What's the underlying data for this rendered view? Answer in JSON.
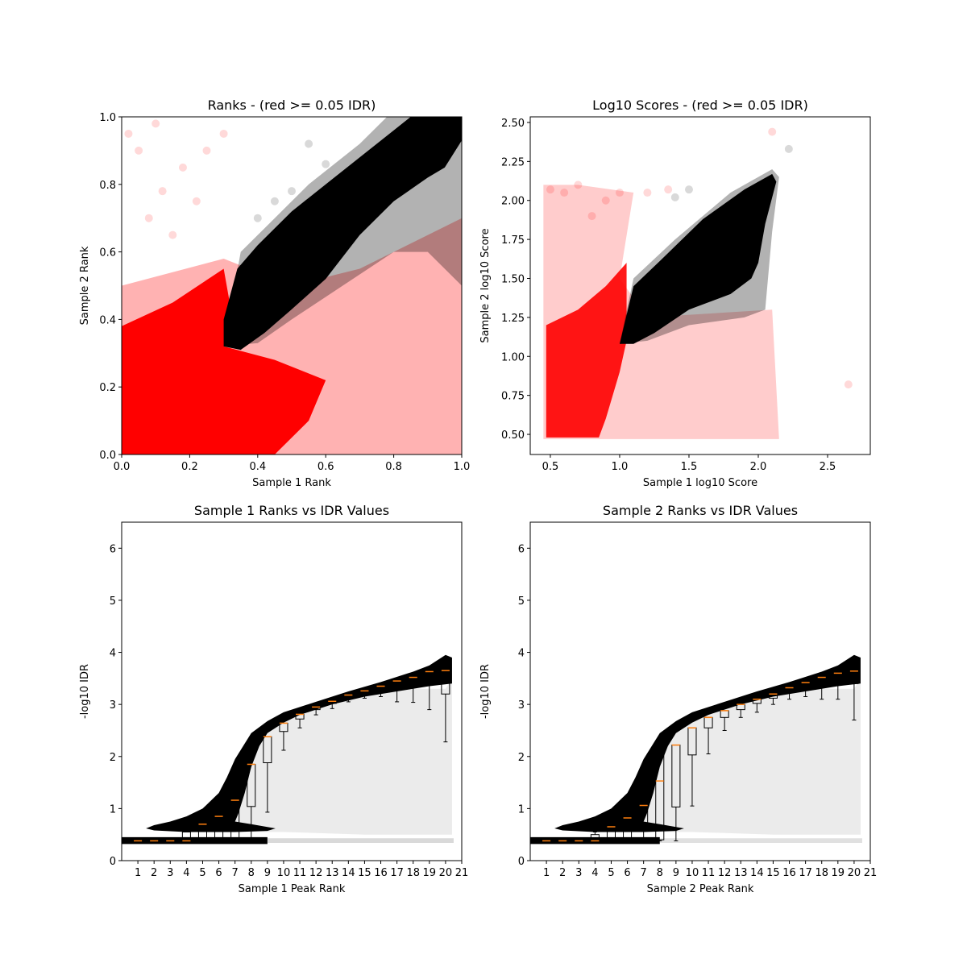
{
  "chart_data": [
    {
      "type": "scatter",
      "title": "Ranks - (red >= 0.05 IDR)",
      "xlabel": "Sample 1 Rank",
      "ylabel": "Sample 2 Rank",
      "xlim": [
        0,
        1
      ],
      "ylim": [
        0,
        1
      ],
      "xticks": [
        {
          "value": 0,
          "label": "0.0"
        },
        0.2,
        0.4,
        0.6,
        0.8,
        {
          "value": 1,
          "label": "1.0"
        }
      ],
      "yticks": [
        {
          "value": 0,
          "label": "0.0"
        },
        0.2,
        0.4,
        0.6,
        0.8,
        {
          "value": 1,
          "label": "1.0"
        }
      ],
      "regions": [
        {
          "color": "#ff0000",
          "opacity": 0.3,
          "x": [
            0,
            0,
            0.3,
            0.5,
            0.7,
            1,
            1
          ],
          "y": [
            0,
            0.5,
            0.58,
            0.5,
            0.55,
            0.7,
            0
          ]
        },
        {
          "color": "#ff0000",
          "opacity": 1,
          "x": [
            0,
            0,
            0.15,
            0.3,
            0.33,
            0.3,
            0.45,
            0.6,
            0.55,
            0.45
          ],
          "y": [
            0,
            0.38,
            0.45,
            0.55,
            0.38,
            0.32,
            0.28,
            0.22,
            0.1,
            0
          ]
        },
        {
          "color": "#000000",
          "opacity": 0.3,
          "x": [
            0.3,
            0.35,
            0.45,
            0.55,
            0.7,
            0.78,
            1,
            1,
            0.9,
            0.8,
            0.65,
            0.5,
            0.4
          ],
          "y": [
            0.32,
            0.6,
            0.7,
            0.8,
            0.92,
            1,
            1,
            0.5,
            0.6,
            0.6,
            0.5,
            0.4,
            0.33
          ]
        },
        {
          "color": "#000000",
          "opacity": 1,
          "x": [
            0.3,
            0.3,
            0.34,
            0.4,
            0.5,
            0.6,
            0.7,
            0.8,
            0.85,
            1,
            1,
            0.95,
            0.9,
            0.8,
            0.7,
            0.6,
            0.5,
            0.42,
            0.35
          ],
          "y": [
            0.32,
            0.4,
            0.55,
            0.62,
            0.72,
            0.8,
            0.88,
            0.96,
            1,
            1,
            0.93,
            0.85,
            0.82,
            0.75,
            0.65,
            0.52,
            0.43,
            0.36,
            0.31
          ]
        }
      ],
      "series": [
        {
          "color": "#ff0000",
          "opacity": 0.15,
          "x": [
            0.02,
            0.05,
            0.1,
            0.18,
            0.25,
            0.08,
            0.15,
            0.3,
            0.22,
            0.12
          ],
          "y": [
            0.95,
            0.9,
            0.98,
            0.85,
            0.9,
            0.7,
            0.65,
            0.95,
            0.75,
            0.78
          ]
        },
        {
          "color": "#000000",
          "opacity": 0.15,
          "x": [
            0.55,
            0.6,
            0.45,
            0.5,
            0.4
          ],
          "y": [
            0.92,
            0.86,
            0.75,
            0.78,
            0.7
          ]
        }
      ]
    },
    {
      "type": "scatter",
      "title": "Log10 Scores - (red >= 0.05 IDR)",
      "xlabel": "Sample 1 log10 Score",
      "ylabel": "Sample 2 log10 Score",
      "xlim": [
        0.355,
        2.808
      ],
      "ylim": [
        0.371,
        2.536
      ],
      "xticks": [
        0.5,
        {
          "value": 1,
          "label": "1.0"
        },
        1.5,
        {
          "value": 2,
          "label": "2.0"
        },
        2.5
      ],
      "yticks": [
        {
          "value": 0.5,
          "label": "0.50"
        },
        0.75,
        {
          "value": 1,
          "label": "1.00"
        },
        1.25,
        {
          "value": 1.5,
          "label": "1.50"
        },
        1.75,
        {
          "value": 2,
          "label": "2.00"
        },
        2.25,
        {
          "value": 2.5,
          "label": "2.50"
        }
      ],
      "regions": [
        {
          "color": "#ff0000",
          "opacity": 0.2,
          "x": [
            0.45,
            0.45,
            0.7,
            1.1,
            1.0,
            1.2,
            2.1,
            2.15
          ],
          "y": [
            0.47,
            2.1,
            2.1,
            2.05,
            1.5,
            1.25,
            1.3,
            0.47
          ]
        },
        {
          "color": "#ff0000",
          "opacity": 0.9,
          "x": [
            0.47,
            0.47,
            0.7,
            0.9,
            1.05,
            1.05,
            1.0,
            0.9,
            0.85
          ],
          "y": [
            0.48,
            1.2,
            1.3,
            1.45,
            1.6,
            1.1,
            0.9,
            0.6,
            0.48
          ]
        },
        {
          "color": "#000000",
          "opacity": 0.3,
          "x": [
            1.0,
            1.1,
            1.4,
            1.8,
            2.1,
            2.15,
            2.1,
            2.05,
            1.9,
            1.5,
            1.2
          ],
          "y": [
            1.08,
            1.5,
            1.75,
            2.05,
            2.2,
            2.15,
            1.8,
            1.3,
            1.25,
            1.2,
            1.1
          ]
        },
        {
          "color": "#000000",
          "opacity": 1,
          "x": [
            1.0,
            1.1,
            1.3,
            1.6,
            1.9,
            2.1,
            2.13,
            2.05,
            2.0,
            1.95,
            1.8,
            1.5,
            1.25,
            1.1
          ],
          "y": [
            1.08,
            1.45,
            1.62,
            1.88,
            2.07,
            2.17,
            2.12,
            1.85,
            1.6,
            1.5,
            1.4,
            1.3,
            1.15,
            1.08
          ]
        }
      ],
      "series": [
        {
          "color": "#ff0000",
          "opacity": 0.15,
          "x": [
            0.5,
            0.6,
            0.7,
            0.8,
            0.9,
            1.0,
            1.2,
            1.35,
            2.65,
            2.1
          ],
          "y": [
            2.07,
            2.05,
            2.1,
            1.9,
            2.0,
            2.05,
            2.05,
            2.07,
            0.82,
            2.44
          ]
        },
        {
          "color": "#000000",
          "opacity": 0.15,
          "x": [
            2.22,
            1.5,
            1.4
          ],
          "y": [
            2.33,
            2.07,
            2.02
          ]
        }
      ]
    },
    {
      "type": "box",
      "title": "Sample 1 Ranks vs IDR Values",
      "xlabel": "Sample 1 Peak Rank",
      "ylabel": "-log10 IDR",
      "xlim": [
        0,
        21
      ],
      "ylim": [
        0,
        6.5
      ],
      "xticks": [
        1,
        2,
        3,
        4,
        5,
        6,
        7,
        8,
        9,
        10,
        11,
        12,
        13,
        14,
        15,
        16,
        17,
        18,
        19,
        20,
        21
      ],
      "yticks": [
        0,
        1,
        2,
        3,
        4,
        5,
        6
      ],
      "box_color": "#000000",
      "median_color": "#ff7f0e",
      "regions": [
        {
          "color": "#000000",
          "opacity": 0.08,
          "x": [
            7,
            7,
            8,
            10,
            14,
            18,
            20,
            20.4,
            20.4,
            15,
            10
          ],
          "y": [
            0.55,
            1.5,
            2.3,
            2.7,
            3.1,
            3.3,
            3.3,
            3.5,
            0.5,
            0.5,
            0.55
          ]
        },
        {
          "color": "#000000",
          "opacity": 1,
          "x": [
            1.5,
            2,
            3,
            4,
            5,
            6,
            6.5,
            7,
            7.5,
            8,
            9,
            10,
            12,
            14,
            16,
            18,
            19,
            20,
            20.4,
            20.4,
            19,
            17,
            15,
            13,
            11,
            10,
            9,
            8.5,
            8,
            7.6,
            7.2,
            7,
            8,
            9.5,
            9,
            7,
            4,
            2
          ],
          "y": [
            0.62,
            0.68,
            0.75,
            0.85,
            1.0,
            1.3,
            1.6,
            1.95,
            2.2,
            2.45,
            2.68,
            2.85,
            3.05,
            3.25,
            3.43,
            3.63,
            3.75,
            3.95,
            3.9,
            3.4,
            3.35,
            3.25,
            3.15,
            3.0,
            2.8,
            2.65,
            2.45,
            2.2,
            1.8,
            1.3,
            0.9,
            0.75,
            0.7,
            0.62,
            0.57,
            0.55,
            0.55,
            0.58
          ]
        },
        {
          "color": "#000000",
          "opacity": 1,
          "x": [
            0,
            0,
            9,
            9
          ],
          "y": [
            0.32,
            0.45,
            0.45,
            0.32
          ]
        },
        {
          "color": "#000000",
          "opacity": 0.15,
          "x": [
            9,
            20.5,
            20.5,
            9
          ],
          "y": [
            0.34,
            0.34,
            0.43,
            0.43
          ]
        }
      ],
      "x": [
        1,
        2,
        3,
        4,
        5,
        6,
        7,
        8,
        9,
        10,
        11,
        12,
        13,
        14,
        15,
        16,
        17,
        18,
        19,
        20
      ],
      "median": [
        0.38,
        0.38,
        0.38,
        0.38,
        0.7,
        0.85,
        1.16,
        1.85,
        2.38,
        2.64,
        2.81,
        2.95,
        3.06,
        3.18,
        3.26,
        3.35,
        3.45,
        3.52,
        3.63,
        3.65
      ],
      "q1": [
        0.36,
        0.36,
        0.36,
        0.37,
        0.39,
        0.39,
        0.4,
        1.04,
        1.88,
        2.48,
        2.72,
        2.9,
        3.02,
        3.13,
        3.22,
        3.3,
        3.38,
        3.44,
        3.45,
        3.2
      ],
      "q3": [
        0.4,
        0.4,
        0.4,
        0.55,
        0.62,
        0.62,
        1.16,
        1.85,
        2.38,
        2.64,
        2.81,
        2.95,
        3.06,
        3.18,
        3.27,
        3.37,
        3.47,
        3.56,
        3.66,
        3.82
      ],
      "whisker_low": [
        0.35,
        0.35,
        0.35,
        0.36,
        0.37,
        0.38,
        0.38,
        0.38,
        0.93,
        2.12,
        2.55,
        2.8,
        2.92,
        3.05,
        3.12,
        3.15,
        3.05,
        3.04,
        2.9,
        2.28
      ],
      "whisker_high": [
        0.42,
        0.42,
        0.42,
        0.6,
        0.72,
        0.85,
        1.3,
        1.85,
        2.38,
        2.64,
        2.81,
        2.95,
        3.06,
        3.18,
        3.27,
        3.37,
        3.48,
        3.58,
        3.7,
        3.82
      ]
    },
    {
      "type": "box",
      "title": "Sample 2 Ranks vs IDR Values",
      "xlabel": "Sample 2 Peak Rank",
      "ylabel": "-log10 IDR",
      "xlim": [
        0,
        21
      ],
      "ylim": [
        0,
        6.5
      ],
      "xticks": [
        1,
        2,
        3,
        4,
        5,
        6,
        7,
        8,
        9,
        10,
        11,
        12,
        13,
        14,
        15,
        16,
        17,
        18,
        19,
        20,
        21
      ],
      "yticks": [
        0,
        1,
        2,
        3,
        4,
        5,
        6
      ],
      "box_color": "#000000",
      "median_color": "#ff7f0e",
      "regions": [
        {
          "color": "#000000",
          "opacity": 0.08,
          "x": [
            6.5,
            7,
            8,
            10,
            14,
            18,
            20,
            20.4,
            20.4,
            15,
            10
          ],
          "y": [
            0.55,
            1.5,
            2.3,
            2.7,
            3.1,
            3.3,
            3.3,
            3.5,
            0.5,
            0.5,
            0.55
          ]
        },
        {
          "color": "#000000",
          "opacity": 1,
          "x": [
            1.5,
            2,
            3,
            4,
            5,
            6,
            6.5,
            7,
            7.5,
            8,
            9,
            10,
            12,
            14,
            16,
            18,
            19,
            20,
            20.4,
            20.4,
            19,
            17,
            15,
            13,
            11,
            10,
            9,
            8.5,
            8,
            7.6,
            7.2,
            7,
            8,
            9.5,
            9,
            7,
            4,
            2
          ],
          "y": [
            0.62,
            0.68,
            0.75,
            0.85,
            1.0,
            1.3,
            1.6,
            1.95,
            2.2,
            2.45,
            2.68,
            2.85,
            3.05,
            3.25,
            3.43,
            3.63,
            3.75,
            3.95,
            3.9,
            3.4,
            3.35,
            3.25,
            3.15,
            3.0,
            2.8,
            2.65,
            2.45,
            2.2,
            1.8,
            1.3,
            0.9,
            0.75,
            0.7,
            0.62,
            0.57,
            0.55,
            0.55,
            0.58
          ]
        },
        {
          "color": "#000000",
          "opacity": 1,
          "x": [
            0,
            0,
            8,
            8
          ],
          "y": [
            0.32,
            0.45,
            0.45,
            0.32
          ]
        },
        {
          "color": "#000000",
          "opacity": 0.12,
          "x": [
            8,
            20.5,
            20.5,
            8
          ],
          "y": [
            0.34,
            0.34,
            0.43,
            0.43
          ]
        }
      ],
      "x": [
        1,
        2,
        3,
        4,
        5,
        6,
        7,
        8,
        9,
        10,
        11,
        12,
        13,
        14,
        15,
        16,
        17,
        18,
        19,
        20
      ],
      "median": [
        0.38,
        0.38,
        0.38,
        0.38,
        0.65,
        0.82,
        1.06,
        1.53,
        2.22,
        2.55,
        2.75,
        2.88,
        3.0,
        3.1,
        3.2,
        3.32,
        3.42,
        3.52,
        3.6,
        3.64
      ],
      "q1": [
        0.36,
        0.36,
        0.36,
        0.37,
        0.38,
        0.39,
        0.6,
        0.4,
        1.03,
        2.03,
        2.55,
        2.75,
        2.9,
        3.02,
        3.12,
        3.25,
        3.35,
        3.45,
        3.5,
        3.4
      ],
      "q3": [
        0.4,
        0.4,
        0.4,
        0.5,
        0.6,
        0.6,
        1.4,
        2.05,
        2.22,
        2.55,
        2.75,
        2.88,
        3.0,
        3.1,
        3.2,
        3.33,
        3.43,
        3.53,
        3.62,
        3.82
      ],
      "whisker_low": [
        0.35,
        0.35,
        0.35,
        0.36,
        0.37,
        0.38,
        0.38,
        0.38,
        0.38,
        1.05,
        2.05,
        2.5,
        2.75,
        2.85,
        3.0,
        3.1,
        3.15,
        3.1,
        3.1,
        2.7
      ],
      "whisker_high": [
        0.42,
        0.42,
        0.42,
        0.55,
        0.7,
        0.82,
        1.4,
        2.05,
        2.22,
        2.55,
        2.75,
        2.88,
        3.0,
        3.1,
        3.2,
        3.33,
        3.43,
        3.53,
        3.62,
        3.82
      ]
    }
  ]
}
